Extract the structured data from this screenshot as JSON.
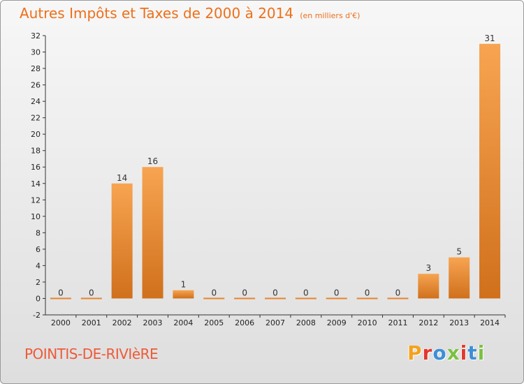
{
  "chart_data": {
    "type": "bar",
    "title": "Autres Impôts et Taxes de 2000 à 2014",
    "subtitle": "(en milliers d'€)",
    "categories": [
      "2000",
      "2001",
      "2002",
      "2003",
      "2004",
      "2005",
      "2006",
      "2007",
      "2008",
      "2009",
      "2010",
      "2011",
      "2012",
      "2013",
      "2014"
    ],
    "values": [
      0,
      0,
      14,
      16,
      1,
      0,
      0,
      0,
      0,
      0,
      0,
      0,
      3,
      5,
      31
    ],
    "data_labels": [
      "0",
      "0",
      "14",
      "16",
      "1",
      "0",
      "0",
      "0",
      "0",
      "0",
      "0",
      "0",
      "3",
      "5",
      "31"
    ],
    "ylim": [
      -2,
      32
    ],
    "yticks": [
      -2,
      0,
      2,
      4,
      6,
      8,
      10,
      12,
      14,
      16,
      18,
      20,
      22,
      24,
      26,
      28,
      30,
      32
    ],
    "grid": false,
    "bar_color": "#e8842c"
  },
  "footer": {
    "town": "POINTIS-DE-RIVIèRE",
    "logo_letters": [
      "P",
      "r",
      "o",
      "x",
      "i",
      "t",
      "i"
    ],
    "logo_colors": [
      "#f4a21c",
      "#e2382d",
      "#3d8fd6",
      "#7bc142",
      "#e2382d",
      "#3d8fd6",
      "#7bc142"
    ]
  }
}
